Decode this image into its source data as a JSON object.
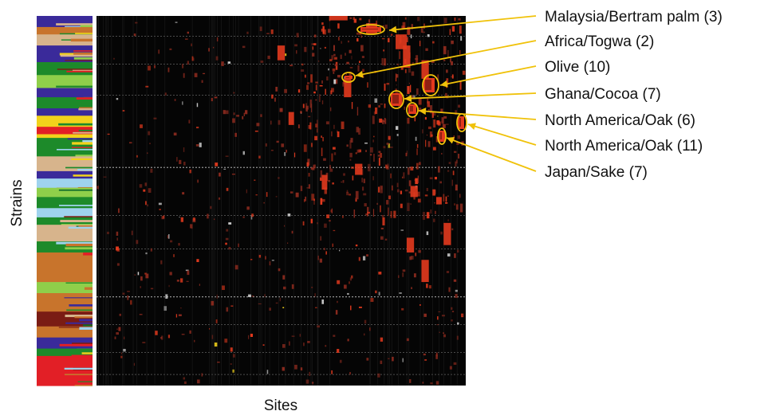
{
  "chart_data": {
    "type": "heatmap",
    "xlabel": "Sites",
    "ylabel": "Strains",
    "ancestry_colors": {
      "purple": "#3a2a9a",
      "green": "#1d8a2a",
      "light_green": "#8fcf4a",
      "yellow": "#f2d21b",
      "orange": "#c8742c",
      "brown": "#7a1c14",
      "tan": "#d7b48c",
      "light_blue": "#9fd3ee",
      "red": "#e21f26",
      "dark_green": "#0f6b2a"
    },
    "heatmap_colors": {
      "background": "#050505",
      "minor": "#8b2a1e",
      "major": "#e33a1e",
      "highlight": "#f2d21b"
    },
    "annotation_color": "#f0c20a",
    "annotations": [
      {
        "label": "Malaysia/Bertram palm (3)"
      },
      {
        "label": "Africa/Togwa (2)"
      },
      {
        "label": "Olive (10)"
      },
      {
        "label": "Ghana/Cocoa (7)"
      },
      {
        "label": "North America/Oak (6)"
      },
      {
        "label": "North America/Oak (11)"
      },
      {
        "label": "Japan/Sake (7)"
      }
    ],
    "grid": false,
    "legend": "none"
  }
}
